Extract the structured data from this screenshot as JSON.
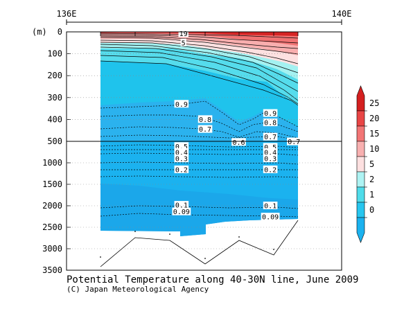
{
  "chart_data": {
    "type": "contour-section",
    "title": "Potential Temperature along 40-30N line, June 2009",
    "credit": "(C) Japan Meteorological Agency",
    "x_axis": {
      "ticks": [
        "136E",
        "140E"
      ]
    },
    "y_axis": {
      "unit": "(m)",
      "upper_ticks": [
        0,
        100,
        200,
        300,
        400,
        500
      ],
      "lower_ticks": [
        1000,
        1500,
        2000,
        2500,
        3000,
        3500
      ]
    },
    "colorbar": {
      "levels": [
        "25",
        "20",
        "15",
        "10",
        "5",
        "2",
        "1",
        "0"
      ],
      "colors": [
        "#d42020",
        "#e94545",
        "#f27575",
        "#f8b0b0",
        "#fde0e0",
        "#aef3f3",
        "#4fdcea",
        "#27c6ef",
        "#1bb2ef"
      ]
    },
    "contour_labels": [
      {
        "text": "19",
        "depth": 8,
        "x": 0.42
      },
      {
        "text": "5",
        "depth": 50,
        "x": 0.42
      },
      {
        "text": "0.9",
        "depth": 330,
        "x": 0.41
      },
      {
        "text": "0.8",
        "depth": 400,
        "x": 0.53
      },
      {
        "text": "0.7",
        "depth": 445,
        "x": 0.53
      },
      {
        "text": "0.9",
        "depth": 372,
        "x": 0.86
      },
      {
        "text": "0.8",
        "depth": 415,
        "x": 0.86
      },
      {
        "text": "0.7",
        "depth": 480,
        "x": 0.86
      },
      {
        "text": "0.6",
        "depth": 522,
        "x": 0.7
      },
      {
        "text": "0.7",
        "depth": 510,
        "x": 0.98
      },
      {
        "text": "0.5",
        "depth": 617,
        "x": 0.41
      },
      {
        "text": "0.4",
        "depth": 755,
        "x": 0.41
      },
      {
        "text": "0.3",
        "depth": 905,
        "x": 0.41
      },
      {
        "text": "0.2",
        "depth": 1160,
        "x": 0.41
      },
      {
        "text": "0.5",
        "depth": 635,
        "x": 0.86
      },
      {
        "text": "0.4",
        "depth": 760,
        "x": 0.86
      },
      {
        "text": "0.3",
        "depth": 905,
        "x": 0.86
      },
      {
        "text": "0.2",
        "depth": 1160,
        "x": 0.86
      },
      {
        "text": "0.1",
        "depth": 1985,
        "x": 0.41
      },
      {
        "text": "0.09",
        "depth": 2140,
        "x": 0.41
      },
      {
        "text": "0.1",
        "depth": 2000,
        "x": 0.86
      },
      {
        "text": "0.09",
        "depth": 2260,
        "x": 0.86
      }
    ]
  }
}
